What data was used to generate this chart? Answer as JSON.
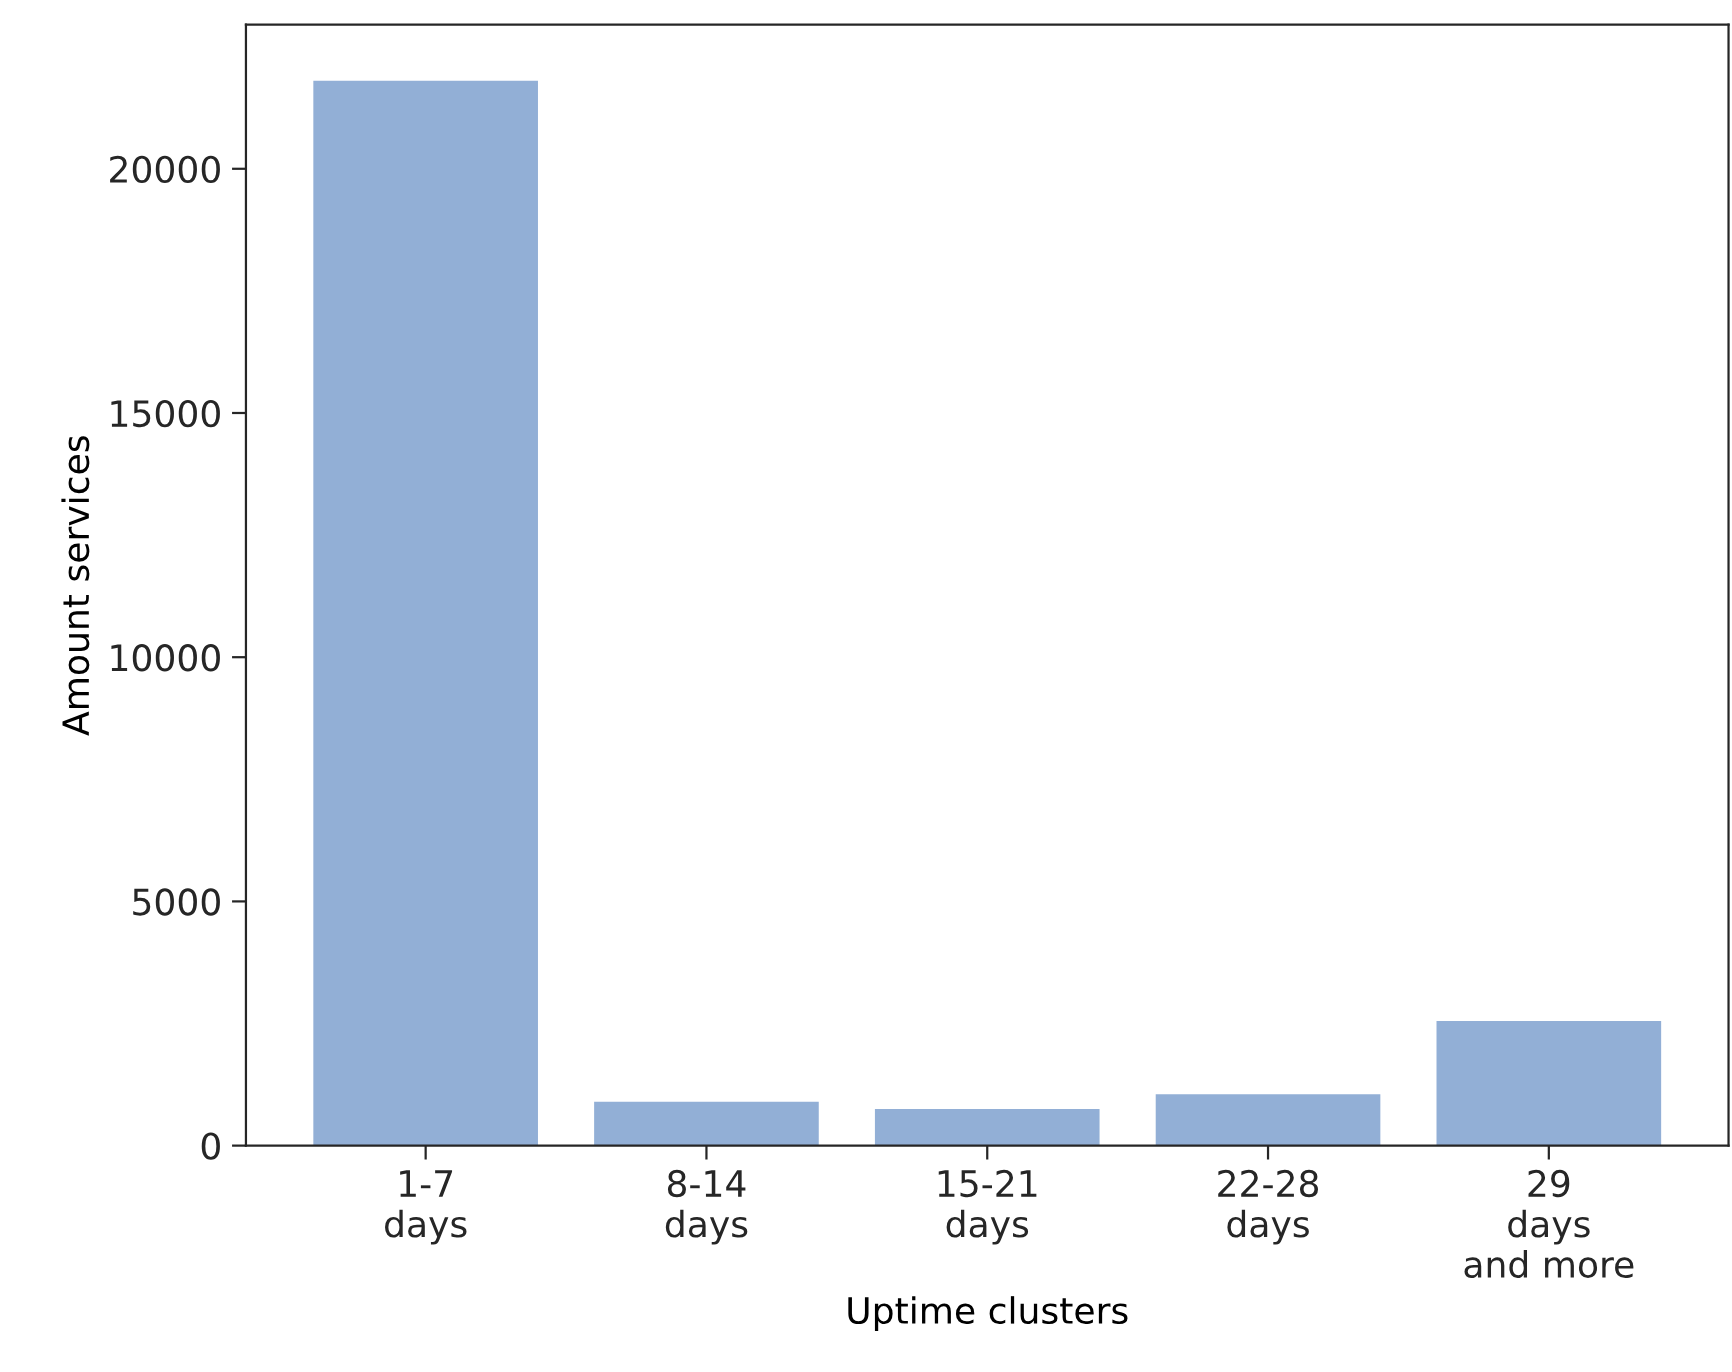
{
  "chart_data": {
    "type": "bar",
    "xlabel": "Uptime clusters",
    "ylabel": "Amount services",
    "categories": [
      "1-7\ndays",
      "8-14\ndays",
      "15-21\ndays",
      "22-28\ndays",
      "29\ndays\nand more"
    ],
    "values": [
      21800,
      900,
      750,
      1050,
      2550
    ],
    "color": "#92afd6",
    "ylim": [
      0,
      22950
    ],
    "yticks": [
      0,
      5000,
      10000,
      15000,
      20000
    ],
    "grid": false,
    "legend": false
  }
}
